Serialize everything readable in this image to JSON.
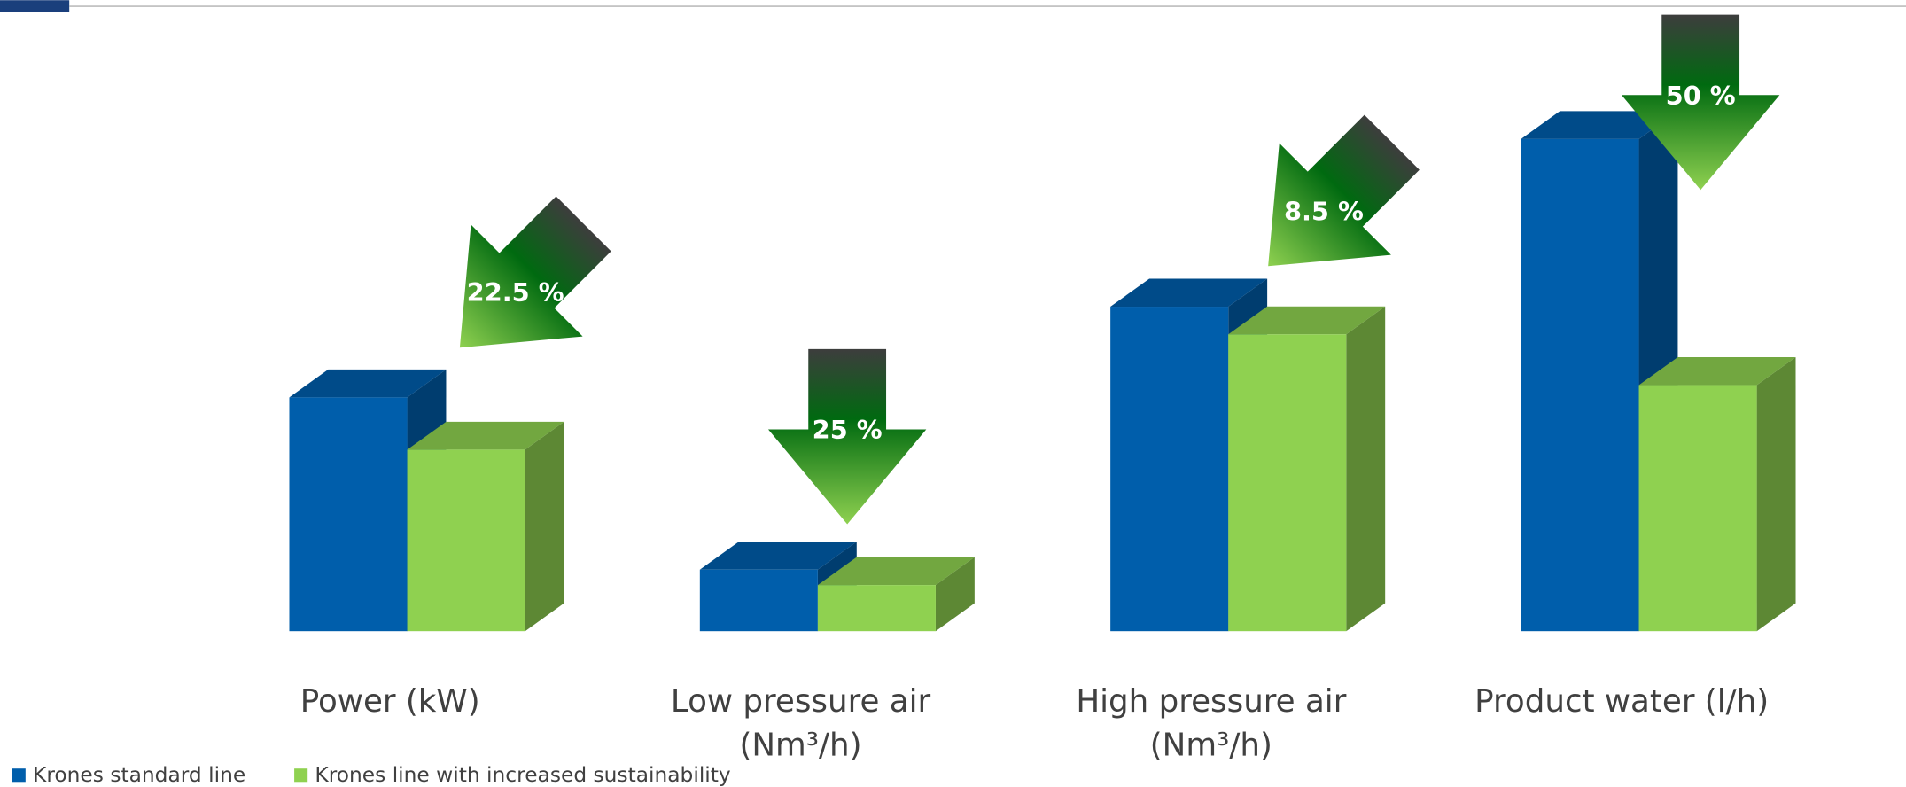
{
  "chart_data": {
    "type": "bar3d",
    "categories": [
      "Power (kW)",
      "Low pressure air (Nm³/h)",
      "High pressure air (Nm³/h)",
      "Product water (l/h)"
    ],
    "series": [
      {
        "name": "Krones standard line",
        "color": "#005eab",
        "values": [
          760,
          200,
          1055,
          1600
        ]
      },
      {
        "name": "Krones line with increased sustainability",
        "color": "#8fd150",
        "values": [
          590,
          150,
          965,
          800
        ]
      }
    ],
    "ylim": [
      0,
      1600
    ],
    "yticks": [
      0,
      200,
      400,
      600,
      800,
      {
        "value": 1000,
        "label": "1.000"
      },
      {
        "value": 1200,
        "label": "1.200"
      },
      {
        "value": 1400,
        "label": "1.400"
      },
      {
        "value": 1600,
        "label": "1.600"
      }
    ],
    "grid": true,
    "legend": "bottom-left",
    "annotations": [
      "22.5 %",
      "25 %",
      "8.5 %",
      "50 %"
    ]
  }
}
